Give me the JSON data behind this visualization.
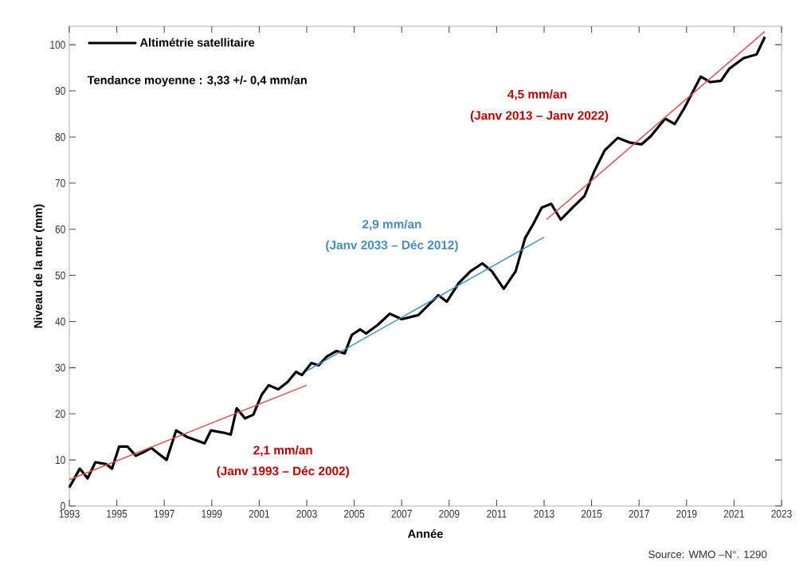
{
  "chart_data": {
    "type": "line",
    "xlabel": "Année",
    "ylabel": "Niveau de la mer (mm)",
    "xlim": [
      1993,
      2023
    ],
    "ylim": [
      0,
      104
    ],
    "xticks": [
      1993,
      1995,
      1997,
      1999,
      2001,
      2003,
      2005,
      2007,
      2009,
      2011,
      2013,
      2015,
      2017,
      2019,
      2021,
      2023
    ],
    "yticks": [
      0,
      10,
      20,
      30,
      40,
      50,
      60,
      70,
      80,
      90,
      100
    ],
    "grid": false,
    "legend": "top left",
    "marker": "none",
    "line_style": "solid",
    "series": [
      {
        "name": "Altimétrie satellitaire",
        "color": "#000000",
        "x": [
          1993.0,
          1993.44,
          1993.77,
          1994.1,
          1994.55,
          1994.8,
          1995.1,
          1995.45,
          1995.8,
          1996.1,
          1996.45,
          1996.8,
          1997.1,
          1997.5,
          1997.95,
          1998.7,
          1998.97,
          1999.5,
          1999.8,
          2000.05,
          2000.4,
          2000.75,
          2001.1,
          2001.4,
          2001.8,
          2002.2,
          2002.55,
          2002.8,
          2003.2,
          2003.5,
          2003.85,
          2004.25,
          2004.6,
          2004.9,
          2005.25,
          2005.5,
          2006.0,
          2006.5,
          2007.0,
          2007.7,
          2008.55,
          2008.9,
          2009.4,
          2009.9,
          2010.4,
          2010.8,
          2011.3,
          2011.8,
          2012.2,
          2012.55,
          2012.9,
          2013.3,
          2013.7,
          2014.2,
          2014.7,
          2015.1,
          2015.55,
          2016.1,
          2016.6,
          2017.1,
          2017.5,
          2018.1,
          2018.5,
          2018.9,
          2019.6,
          2020.0,
          2020.45,
          2020.8,
          2021.4,
          2021.95,
          2022.3
        ],
        "values": [
          4.0,
          8.1,
          6.0,
          9.5,
          9.1,
          8.1,
          12.9,
          12.9,
          10.9,
          11.6,
          12.6,
          11.2,
          10.0,
          16.4,
          15.0,
          13.6,
          16.4,
          15.9,
          15.5,
          21.2,
          19.0,
          19.8,
          24.1,
          26.2,
          25.3,
          26.9,
          29.1,
          28.4,
          31.0,
          30.5,
          32.4,
          33.6,
          33.1,
          37.1,
          38.3,
          37.4,
          39.3,
          41.7,
          40.5,
          41.4,
          45.7,
          44.3,
          48.3,
          50.9,
          52.6,
          50.9,
          47.1,
          50.9,
          58.1,
          61.2,
          64.7,
          65.5,
          62.1,
          64.7,
          67.2,
          72.4,
          77.1,
          79.8,
          78.8,
          78.4,
          80.2,
          84.0,
          82.8,
          86.2,
          93.1,
          91.9,
          92.2,
          94.8,
          97.1,
          97.9,
          101.7
        ]
      },
      {
        "type": "line",
        "color": "#d9534f",
        "x": [
          1993.0,
          2003.0
        ],
        "values": [
          5.7,
          26.2
        ]
      },
      {
        "type": "line",
        "color": "#3f8fc0",
        "x": [
          2003.0,
          2013.0
        ],
        "values": [
          29.3,
          58.3
        ]
      },
      {
        "type": "line",
        "color": "#d9534f",
        "x": [
          2013.1,
          2022.3
        ],
        "values": [
          62.1,
          102.9
        ]
      }
    ],
    "annotations": [
      "Tendance moyenne : 3,33 +/- 0,4 mm/an",
      "2,1 mm/an",
      "(Janv 1993 – Déc 2002)",
      "2,9 mm/an",
      "(Janv 2033 – Déc 2012)",
      "4,5 mm/an",
      "(Janv 2013 – Janv 2022)",
      "Source: WMO –N°. 1290"
    ]
  }
}
